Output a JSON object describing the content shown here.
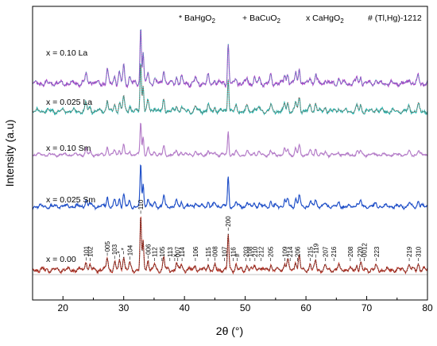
{
  "chart_data": {
    "type": "line",
    "xlabel": "2θ (°)",
    "ylabel": "Intensity (a.u)",
    "xlim": [
      15,
      80
    ],
    "xticks": [
      20,
      30,
      40,
      50,
      60,
      70,
      80
    ],
    "ytick_labels": false,
    "grid": false,
    "legend": [
      {
        "marker": "*",
        "label": "BaHgO",
        "sub": "2"
      },
      {
        "marker": "+",
        "label": "BaCuO",
        "sub": "2"
      },
      {
        "marker": "x",
        "label": "CaHgO",
        "sub": "2"
      },
      {
        "marker": "#",
        "label": "(Tl,Hg)-1212",
        "sub": ""
      }
    ],
    "peaks": [
      {
        "x": 23.8,
        "h": 0.18
      },
      {
        "x": 24.5,
        "h": 0.08
      },
      {
        "x": 27.3,
        "h": 0.24
      },
      {
        "x": 28.5,
        "h": 0.14
      },
      {
        "x": 29.3,
        "h": 0.18
      },
      {
        "x": 30.0,
        "h": 0.3
      },
      {
        "x": 31.0,
        "h": 0.12
      },
      {
        "x": 32.8,
        "h": 1.0
      },
      {
        "x": 33.2,
        "h": 0.55
      },
      {
        "x": 34.0,
        "h": 0.2
      },
      {
        "x": 35.1,
        "h": 0.1
      },
      {
        "x": 36.6,
        "h": 0.24
      },
      {
        "x": 38.7,
        "h": 0.12
      },
      {
        "x": 39.5,
        "h": 0.1
      },
      {
        "x": 41.8,
        "h": 0.1
      },
      {
        "x": 43.9,
        "h": 0.12
      },
      {
        "x": 45.0,
        "h": 0.08
      },
      {
        "x": 47.2,
        "h": 0.7
      },
      {
        "x": 48.5,
        "h": 0.1
      },
      {
        "x": 50.3,
        "h": 0.1
      },
      {
        "x": 51.5,
        "h": 0.08
      },
      {
        "x": 52.3,
        "h": 0.08
      },
      {
        "x": 54.2,
        "h": 0.12
      },
      {
        "x": 56.5,
        "h": 0.15
      },
      {
        "x": 57.0,
        "h": 0.18
      },
      {
        "x": 58.3,
        "h": 0.18
      },
      {
        "x": 58.9,
        "h": 0.28
      },
      {
        "x": 60.7,
        "h": 0.12
      },
      {
        "x": 61.6,
        "h": 0.18
      },
      {
        "x": 63.2,
        "h": 0.08
      },
      {
        "x": 65.4,
        "h": 0.08
      },
      {
        "x": 68.4,
        "h": 0.1
      },
      {
        "x": 69.0,
        "h": 0.12
      },
      {
        "x": 71.5,
        "h": 0.06
      },
      {
        "x": 77.0,
        "h": 0.1
      },
      {
        "x": 78.5,
        "h": 0.13
      }
    ],
    "series": [
      {
        "name": "x = 0.00",
        "color": "#c0392b",
        "fit_color": "#222222",
        "dotted_fit": true
      },
      {
        "name": "x = 0.025 Sm",
        "color": "#1f4fc8",
        "fit_color": "#1f4fc8",
        "dotted_fit": false
      },
      {
        "name": "x = 0.10 Sm",
        "color": "#b47cc8",
        "fit_color": "#b47cc8",
        "dotted_fit": false
      },
      {
        "name": "x = 0.025 La",
        "color": "#20b7b0",
        "fit_color": "#c0392b",
        "dotted_fit": true
      },
      {
        "name": "x = 0.10 La",
        "color": "#b040c8",
        "fit_color": "#20b7b0",
        "dotted_fit": true
      }
    ],
    "peak_labels": [
      {
        "x": 23.8,
        "text": "101"
      },
      {
        "x": 24.5,
        "text": "102"
      },
      {
        "x": 27.3,
        "text": "005"
      },
      {
        "x": 28.5,
        "text": "103"
      },
      {
        "x": 29.3,
        "text": "*"
      },
      {
        "x": 30.0,
        "text": "*"
      },
      {
        "x": 31.0,
        "text": "104"
      },
      {
        "x": 32.8,
        "text": "110"
      },
      {
        "x": 34.0,
        "text": "006"
      },
      {
        "x": 35.1,
        "text": "112"
      },
      {
        "x": 36.3,
        "text": "105"
      },
      {
        "x": 37.6,
        "text": "113"
      },
      {
        "x": 38.4,
        "text": "x"
      },
      {
        "x": 38.9,
        "text": "007"
      },
      {
        "x": 39.6,
        "text": "114"
      },
      {
        "x": 41.8,
        "text": "106"
      },
      {
        "x": 43.9,
        "text": "115"
      },
      {
        "x": 45.0,
        "text": "008"
      },
      {
        "x": 46.6,
        "text": "107"
      },
      {
        "x": 47.2,
        "text": "200"
      },
      {
        "x": 48.0,
        "text": "116"
      },
      {
        "x": 48.7,
        "text": "#"
      },
      {
        "x": 50.1,
        "text": "203"
      },
      {
        "x": 50.8,
        "text": "108"
      },
      {
        "x": 51.6,
        "text": "210"
      },
      {
        "x": 52.6,
        "text": "212"
      },
      {
        "x": 54.2,
        "text": "205"
      },
      {
        "x": 56.5,
        "text": "109"
      },
      {
        "x": 57.4,
        "text": "214"
      },
      {
        "x": 58.6,
        "text": "206"
      },
      {
        "x": 60.7,
        "text": "215"
      },
      {
        "x": 61.6,
        "text": "119"
      },
      {
        "x": 63.2,
        "text": "207"
      },
      {
        "x": 64.6,
        "text": "216"
      },
      {
        "x": 67.3,
        "text": "208"
      },
      {
        "x": 68.9,
        "text": "220"
      },
      {
        "x": 69.6,
        "text": "0012"
      },
      {
        "x": 71.6,
        "text": "223"
      },
      {
        "x": 77.0,
        "text": "219"
      },
      {
        "x": 78.5,
        "text": "310"
      }
    ]
  }
}
